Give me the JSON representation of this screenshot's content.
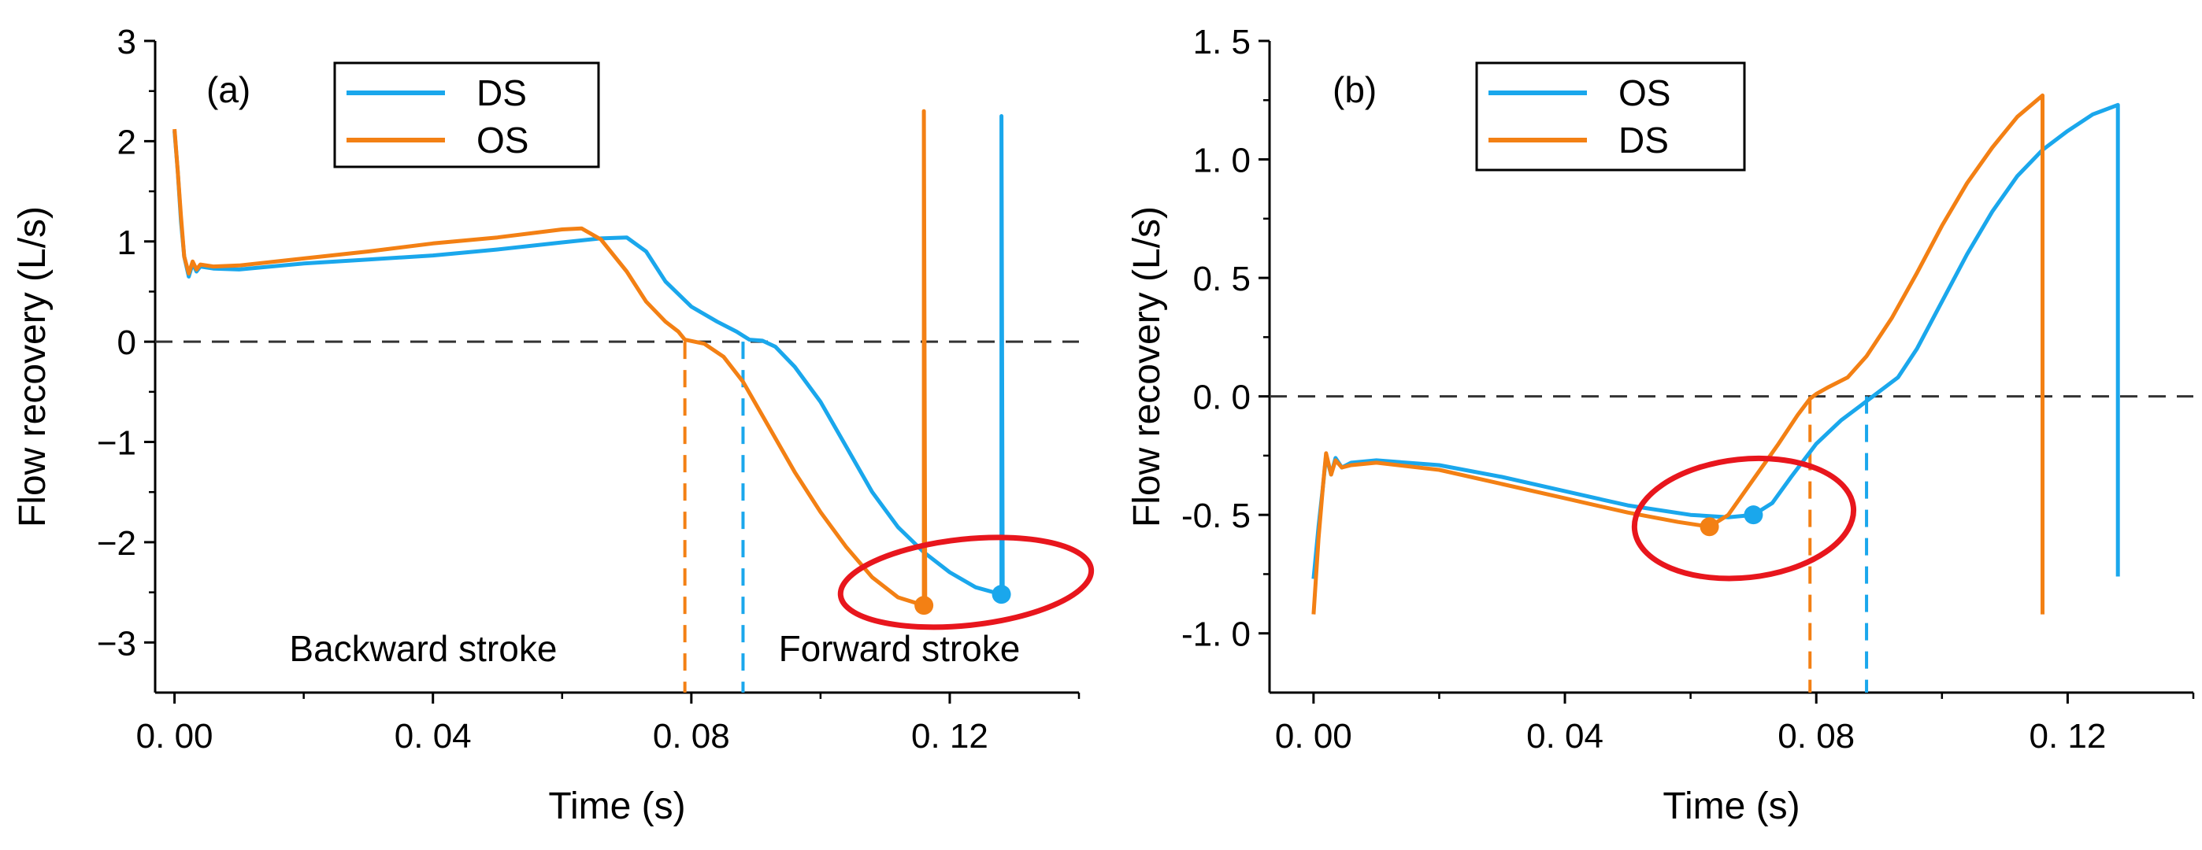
{
  "chart_data": [
    {
      "panel_label": "(a)",
      "type": "line",
      "xlabel": "Time (s)",
      "ylabel": "Flow recovery (L/s)",
      "xlim": [
        -0.003,
        0.14
      ],
      "ylim": [
        -3.5,
        3
      ],
      "xticks": [
        0.0,
        0.04,
        0.08,
        0.12
      ],
      "xtick_labels": [
        "0. 00",
        "0. 04",
        "0. 08",
        "0. 12"
      ],
      "yticks": [
        3,
        2,
        1,
        0,
        -1,
        -2,
        -3
      ],
      "ytick_labels": [
        "3",
        "2",
        "1",
        "0",
        "−1",
        "−2",
        "−3"
      ],
      "zero_line": 0,
      "annotations": [
        "Backward stroke",
        "Forward stroke"
      ],
      "series": [
        {
          "name": "DS",
          "color": "#1AA7EC",
          "points": [
            [
              0.0,
              2.1
            ],
            [
              0.0005,
              1.7
            ],
            [
              0.001,
              1.2
            ],
            [
              0.0015,
              0.85
            ],
            [
              0.0022,
              0.65
            ],
            [
              0.0028,
              0.78
            ],
            [
              0.0034,
              0.7
            ],
            [
              0.004,
              0.75
            ],
            [
              0.006,
              0.73
            ],
            [
              0.01,
              0.72
            ],
            [
              0.02,
              0.78
            ],
            [
              0.03,
              0.82
            ],
            [
              0.04,
              0.86
            ],
            [
              0.05,
              0.92
            ],
            [
              0.06,
              0.99
            ],
            [
              0.066,
              1.03
            ],
            [
              0.07,
              1.04
            ],
            [
              0.073,
              0.9
            ],
            [
              0.076,
              0.6
            ],
            [
              0.08,
              0.35
            ],
            [
              0.084,
              0.2
            ],
            [
              0.087,
              0.1
            ],
            [
              0.0885,
              0.04
            ],
            [
              0.089,
              0.02
            ],
            [
              0.091,
              0.01
            ],
            [
              0.093,
              -0.05
            ],
            [
              0.096,
              -0.25
            ],
            [
              0.1,
              -0.6
            ],
            [
              0.104,
              -1.05
            ],
            [
              0.108,
              -1.5
            ],
            [
              0.112,
              -1.85
            ],
            [
              0.116,
              -2.1
            ],
            [
              0.12,
              -2.3
            ],
            [
              0.124,
              -2.45
            ],
            [
              0.128,
              -2.52
            ],
            [
              0.128,
              2.25
            ],
            [
              0.1282,
              -2.5
            ]
          ],
          "end_marker": [
            0.128,
            -2.52
          ]
        },
        {
          "name": "OS",
          "color": "#F38014",
          "points": [
            [
              0.0,
              2.12
            ],
            [
              0.0005,
              1.7
            ],
            [
              0.001,
              1.25
            ],
            [
              0.0015,
              0.85
            ],
            [
              0.0022,
              0.68
            ],
            [
              0.0028,
              0.8
            ],
            [
              0.0034,
              0.72
            ],
            [
              0.004,
              0.77
            ],
            [
              0.006,
              0.75
            ],
            [
              0.01,
              0.76
            ],
            [
              0.02,
              0.83
            ],
            [
              0.03,
              0.9
            ],
            [
              0.04,
              0.98
            ],
            [
              0.05,
              1.04
            ],
            [
              0.06,
              1.12
            ],
            [
              0.063,
              1.13
            ],
            [
              0.066,
              1.02
            ],
            [
              0.07,
              0.7
            ],
            [
              0.073,
              0.4
            ],
            [
              0.076,
              0.2
            ],
            [
              0.078,
              0.1
            ],
            [
              0.079,
              0.02
            ],
            [
              0.082,
              -0.02
            ],
            [
              0.085,
              -0.15
            ],
            [
              0.088,
              -0.4
            ],
            [
              0.092,
              -0.85
            ],
            [
              0.096,
              -1.3
            ],
            [
              0.1,
              -1.7
            ],
            [
              0.104,
              -2.05
            ],
            [
              0.108,
              -2.35
            ],
            [
              0.112,
              -2.55
            ],
            [
              0.116,
              -2.63
            ],
            [
              0.116,
              2.3
            ],
            [
              0.1162,
              -2.6
            ]
          ],
          "end_marker": [
            0.116,
            -2.63
          ]
        }
      ],
      "vlines": [
        {
          "x": 0.079,
          "color": "#F38014"
        },
        {
          "x": 0.088,
          "color": "#1AA7EC"
        }
      ],
      "highlight_ellipse": {
        "center": [
          0.1225,
          -2.4
        ],
        "rx": 0.0195,
        "ry": 0.43,
        "color": "#E8161D"
      }
    },
    {
      "panel_label": "(b)",
      "type": "line",
      "xlabel": "Time (s)",
      "ylabel": "Flow recovery (L/s)",
      "xlim": [
        -0.007,
        0.14
      ],
      "ylim": [
        -1.25,
        1.5
      ],
      "xticks": [
        0.0,
        0.04,
        0.08,
        0.12
      ],
      "xtick_labels": [
        "0. 00",
        "0. 04",
        "0. 08",
        "0. 12"
      ],
      "yticks": [
        1.5,
        1.0,
        0.5,
        0.0,
        -0.5,
        -1.0
      ],
      "ytick_labels": [
        "1. 5",
        "1. 0",
        "0. 5",
        "0. 0",
        "-0. 5",
        "-1. 0"
      ],
      "zero_line": 0,
      "annotations": [],
      "series": [
        {
          "name": "OS",
          "color": "#1AA7EC",
          "points": [
            [
              0.0,
              -0.77
            ],
            [
              0.0008,
              -0.55
            ],
            [
              0.0015,
              -0.38
            ],
            [
              0.002,
              -0.25
            ],
            [
              0.0028,
              -0.33
            ],
            [
              0.0035,
              -0.26
            ],
            [
              0.0045,
              -0.3
            ],
            [
              0.006,
              -0.28
            ],
            [
              0.01,
              -0.27
            ],
            [
              0.02,
              -0.29
            ],
            [
              0.03,
              -0.34
            ],
            [
              0.04,
              -0.4
            ],
            [
              0.05,
              -0.46
            ],
            [
              0.06,
              -0.5
            ],
            [
              0.066,
              -0.51
            ],
            [
              0.07,
              -0.5
            ],
            [
              0.073,
              -0.45
            ],
            [
              0.076,
              -0.34
            ],
            [
              0.08,
              -0.2
            ],
            [
              0.084,
              -0.1
            ],
            [
              0.087,
              -0.04
            ],
            [
              0.0885,
              -0.01
            ],
            [
              0.09,
              0.02
            ],
            [
              0.093,
              0.08
            ],
            [
              0.096,
              0.2
            ],
            [
              0.1,
              0.4
            ],
            [
              0.104,
              0.6
            ],
            [
              0.108,
              0.78
            ],
            [
              0.112,
              0.93
            ],
            [
              0.116,
              1.04
            ],
            [
              0.12,
              1.12
            ],
            [
              0.124,
              1.19
            ],
            [
              0.128,
              1.23
            ],
            [
              0.128,
              -0.76
            ]
          ],
          "end_marker": [
            0.07,
            -0.5
          ]
        },
        {
          "name": "DS",
          "color": "#F38014",
          "points": [
            [
              0.0,
              -0.92
            ],
            [
              0.0008,
              -0.6
            ],
            [
              0.0015,
              -0.38
            ],
            [
              0.002,
              -0.24
            ],
            [
              0.0028,
              -0.33
            ],
            [
              0.0035,
              -0.27
            ],
            [
              0.0045,
              -0.3
            ],
            [
              0.006,
              -0.29
            ],
            [
              0.01,
              -0.28
            ],
            [
              0.02,
              -0.31
            ],
            [
              0.03,
              -0.37
            ],
            [
              0.04,
              -0.43
            ],
            [
              0.05,
              -0.49
            ],
            [
              0.058,
              -0.53
            ],
            [
              0.063,
              -0.55
            ],
            [
              0.066,
              -0.5
            ],
            [
              0.07,
              -0.35
            ],
            [
              0.074,
              -0.2
            ],
            [
              0.077,
              -0.08
            ],
            [
              0.079,
              -0.01
            ],
            [
              0.08,
              0.01
            ],
            [
              0.082,
              0.04
            ],
            [
              0.085,
              0.08
            ],
            [
              0.088,
              0.17
            ],
            [
              0.092,
              0.33
            ],
            [
              0.096,
              0.52
            ],
            [
              0.1,
              0.72
            ],
            [
              0.104,
              0.9
            ],
            [
              0.108,
              1.05
            ],
            [
              0.112,
              1.18
            ],
            [
              0.116,
              1.27
            ],
            [
              0.116,
              -0.92
            ]
          ],
          "end_marker": [
            0.063,
            -0.55
          ]
        }
      ],
      "vlines": [
        {
          "x": 0.079,
          "color": "#F38014"
        },
        {
          "x": 0.088,
          "color": "#1AA7EC"
        }
      ],
      "highlight_ellipse": {
        "center": [
          0.0685,
          -0.515
        ],
        "rx": 0.0175,
        "ry": 0.25,
        "color": "#E8161D"
      }
    }
  ]
}
